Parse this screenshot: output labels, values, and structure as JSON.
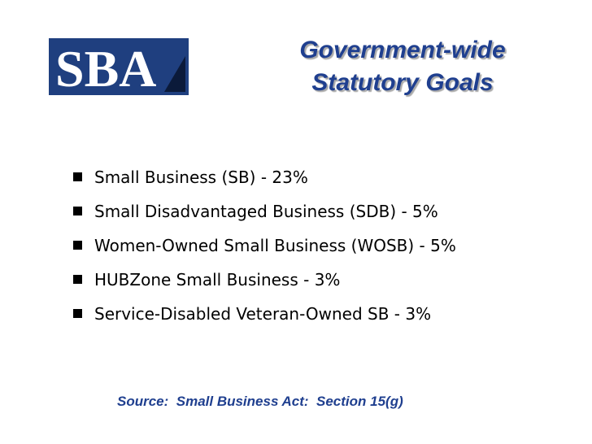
{
  "logo": {
    "text": "SBA",
    "background_color": "#1f3f7f",
    "text_color": "#ffffff"
  },
  "title": {
    "line1": "Government-wide",
    "line2": "Statutory Goals"
  },
  "bullets": [
    "Small Business (SB) - 23%",
    "Small Disadvantaged Business (SDB) - 5%",
    "Women-Owned Small Business (WOSB) - 5%",
    "HUBZone Small Business - 3%",
    "Service-Disabled Veteran-Owned SB - 3%"
  ],
  "source": "Source:  Small Business Act:  Section 15(g)",
  "colors": {
    "title": "#1f3f8f",
    "source": "#1f3f8f",
    "bullet_text": "#000000"
  }
}
